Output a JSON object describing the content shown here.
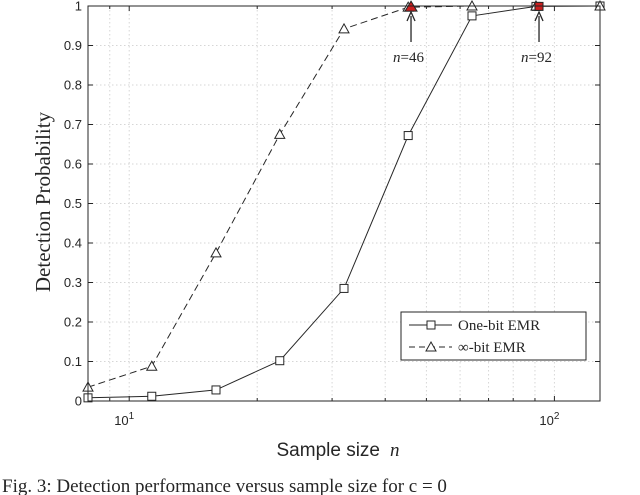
{
  "chart_data": {
    "type": "line",
    "title": "",
    "xlabel": "Sample size",
    "xlabel_var": "n",
    "ylabel": "Detection Probability",
    "xscale": "log",
    "xlim": [
      8,
      128
    ],
    "ylim": [
      0,
      1
    ],
    "grid": true,
    "xtick_labels": [
      {
        "value": 10,
        "base": "10",
        "exp": "1"
      },
      {
        "value": 100,
        "base": "10",
        "exp": "2"
      }
    ],
    "yticks": [
      "0",
      "0.1",
      "0.2",
      "0.3",
      "0.4",
      "0.5",
      "0.6",
      "0.7",
      "0.8",
      "0.9",
      "1"
    ],
    "series": [
      {
        "name": "One-bit EMR",
        "marker": "square",
        "linestyle": "solid",
        "x": [
          8,
          11.3,
          16,
          22.6,
          32,
          45.3,
          64,
          90.5,
          128
        ],
        "y": [
          0.008,
          0.012,
          0.028,
          0.102,
          0.285,
          0.672,
          0.975,
          0.999,
          1.0
        ]
      },
      {
        "name": "∞-bit EMR",
        "marker": "triangle",
        "linestyle": "dashed",
        "x": [
          8,
          11.3,
          16,
          22.6,
          32,
          45.3,
          64,
          90.5,
          128
        ],
        "y": [
          0.035,
          0.088,
          0.375,
          0.675,
          0.942,
          0.997,
          1.0,
          1.0,
          1.0
        ]
      }
    ],
    "annotations": [
      {
        "var": "n",
        "text": "=46",
        "x": 46,
        "y": 0.997,
        "marker_color": "#cc1f1f"
      },
      {
        "var": "n",
        "text": "=92",
        "x": 92,
        "y": 0.999,
        "marker_color": "#cc1f1f"
      }
    ],
    "legend_position": "lower-right"
  },
  "caption": "Fig. 3: Detection performance versus sample size for c = 0"
}
